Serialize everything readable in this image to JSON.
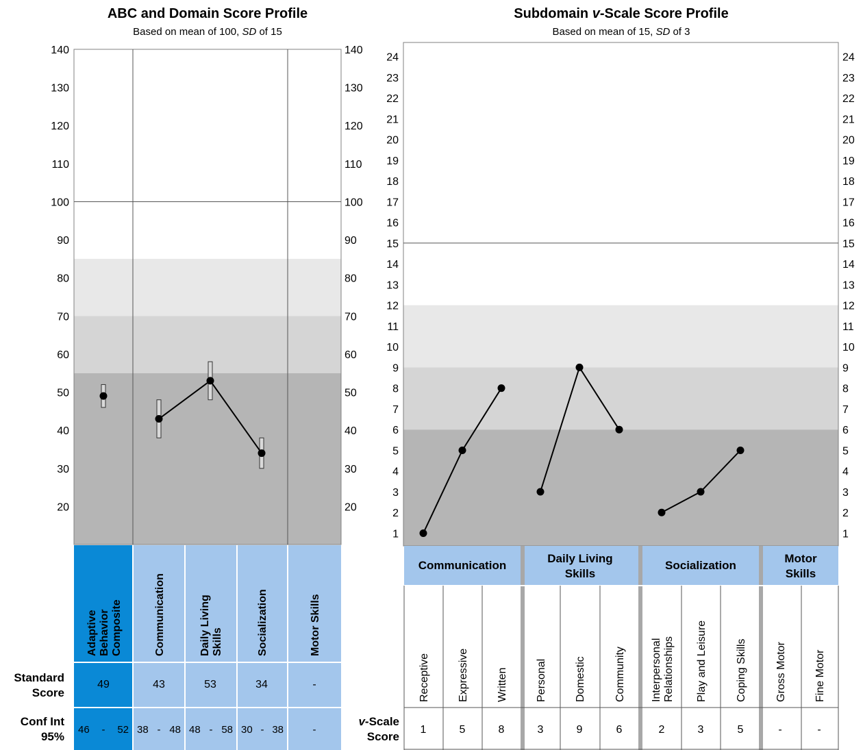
{
  "chart_data": [
    {
      "type": "line",
      "title": "ABC and Domain Score Profile",
      "subtitle_parts": [
        "Based on mean of 100, ",
        "SD",
        " of 15"
      ],
      "ylim": [
        10,
        140
      ],
      "yticks": [
        20,
        30,
        40,
        50,
        60,
        70,
        80,
        90,
        100,
        110,
        120,
        130,
        140
      ],
      "reference_line": 100,
      "bands": [
        {
          "from": 70,
          "to": 85,
          "color": "#e8e8e8"
        },
        {
          "from": 55,
          "to": 70,
          "color": "#d5d5d5"
        },
        {
          "from": 10,
          "to": 55,
          "color": "#b5b5b5"
        }
      ],
      "columns": [
        {
          "label": [
            "Adaptive",
            "Behavior",
            "Composite"
          ],
          "value": 49,
          "ci": [
            46,
            52
          ],
          "ci_text": [
            "46",
            "-",
            "52"
          ],
          "score_text": "49",
          "highlight": true
        },
        {
          "label": [
            "Communication"
          ],
          "value": 43,
          "ci": [
            38,
            48
          ],
          "ci_text": [
            "38",
            "-",
            "48"
          ],
          "score_text": "43"
        },
        {
          "label": [
            "Daily Living",
            "Skills"
          ],
          "value": 53,
          "ci": [
            48,
            58
          ],
          "ci_text": [
            "48",
            "-",
            "58"
          ],
          "score_text": "53"
        },
        {
          "label": [
            "Socialization"
          ],
          "value": 34,
          "ci": [
            30,
            38
          ],
          "ci_text": [
            "30",
            "-",
            "38"
          ],
          "score_text": "34"
        },
        {
          "label": [
            "Motor Skills"
          ],
          "value": null,
          "ci": null,
          "ci_text": [
            "-"
          ],
          "score_text": "-"
        }
      ],
      "row_labels": {
        "standard": [
          "Standard",
          "Score"
        ],
        "conf": [
          "Conf Int",
          "95%"
        ]
      }
    },
    {
      "type": "line",
      "title_parts": [
        "Subdomain ",
        "v",
        "-Scale Score Profile"
      ],
      "subtitle_parts": [
        "Based on mean of 15, ",
        "SD",
        " of 3"
      ],
      "ylim": [
        0,
        24
      ],
      "yticks": [
        1,
        2,
        3,
        4,
        5,
        6,
        7,
        8,
        9,
        10,
        11,
        12,
        13,
        14,
        15,
        16,
        17,
        18,
        19,
        20,
        21,
        22,
        23,
        24
      ],
      "reference_line": 15,
      "bands": [
        {
          "from": 9,
          "to": 12,
          "color": "#e8e8e8"
        },
        {
          "from": 6,
          "to": 9,
          "color": "#d5d5d5"
        },
        {
          "from": 0,
          "to": 6,
          "color": "#b5b5b5"
        }
      ],
      "groups": [
        {
          "label": [
            "Communication"
          ],
          "subdomains": [
            {
              "label": [
                "Receptive"
              ],
              "value": 1,
              "text": "1"
            },
            {
              "label": [
                "Expressive"
              ],
              "value": 5,
              "text": "5"
            },
            {
              "label": [
                "Written"
              ],
              "value": 8,
              "text": "8"
            }
          ]
        },
        {
          "label": [
            "Daily Living",
            "Skills"
          ],
          "subdomains": [
            {
              "label": [
                "Personal"
              ],
              "value": 3,
              "text": "3"
            },
            {
              "label": [
                "Domestic"
              ],
              "value": 9,
              "text": "9"
            },
            {
              "label": [
                "Community"
              ],
              "value": 6,
              "text": "6"
            }
          ]
        },
        {
          "label": [
            "Socialization"
          ],
          "subdomains": [
            {
              "label": [
                "Interpersonal",
                "Relationships"
              ],
              "value": 2,
              "text": "2"
            },
            {
              "label": [
                "Play and Leisure"
              ],
              "value": 3,
              "text": "3"
            },
            {
              "label": [
                "Coping Skills"
              ],
              "value": 5,
              "text": "5"
            }
          ]
        },
        {
          "label": [
            "Motor",
            "Skills"
          ],
          "subdomains": [
            {
              "label": [
                "Gross Motor"
              ],
              "value": null,
              "text": "-"
            },
            {
              "label": [
                "Fine Motor"
              ],
              "value": null,
              "text": "-"
            }
          ]
        }
      ],
      "row_label_parts": [
        "v",
        "-Scale",
        "Score"
      ]
    }
  ],
  "colors": {
    "header_fill": "#a3c6ec",
    "highlight_fill": "#0a89d6",
    "axis_line": "#808080",
    "group_divider": "#a8a8a8",
    "grid_white": "#ffffff"
  }
}
